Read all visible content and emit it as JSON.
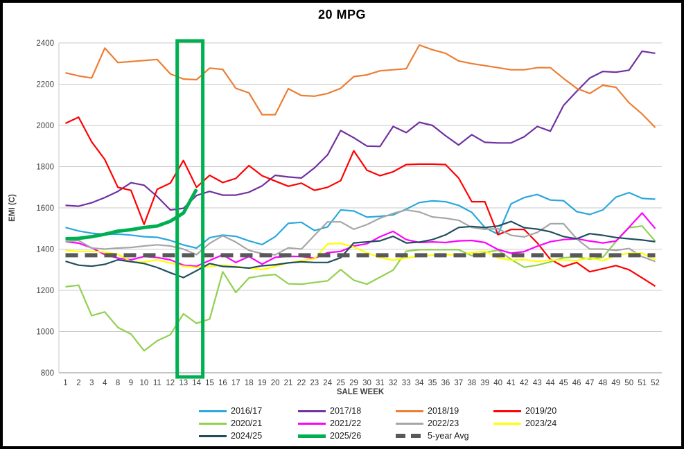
{
  "chart_data": {
    "type": "line",
    "title": "20 MPG",
    "xlabel": "SALE WEEK",
    "ylabel": "EMI (C)",
    "ylim": [
      800,
      2400
    ],
    "y_ticks": [
      800,
      1000,
      1200,
      1400,
      1600,
      1800,
      2000,
      2200,
      2400
    ],
    "grid": true,
    "legend_position": "bottom",
    "categories": [
      "1",
      "2",
      "3",
      "4",
      "8",
      "9",
      "10",
      "11",
      "12",
      "13",
      "14",
      "15",
      "16",
      "17",
      "18",
      "19",
      "20",
      "21",
      "22",
      "23",
      "24",
      "25",
      "29",
      "30",
      "31",
      "32",
      "33",
      "34",
      "35",
      "36",
      "37",
      "38",
      "39",
      "40",
      "41",
      "42",
      "43",
      "44",
      "45",
      "46",
      "47",
      "48",
      "49",
      "50",
      "51",
      "52"
    ],
    "highlight": {
      "from_category": "13",
      "to_category": "14",
      "color": "#00B050"
    },
    "series": [
      {
        "name": "2016/17",
        "color": "#29A8DC",
        "width": 2.2,
        "values": [
          1505,
          1488,
          1477,
          1472,
          1473,
          1468,
          1460,
          1457,
          1442,
          1420,
          1405,
          1455,
          1468,
          1462,
          1440,
          1422,
          1460,
          1525,
          1530,
          1490,
          1508,
          1590,
          1585,
          1555,
          1559,
          1566,
          1594,
          1626,
          1634,
          1630,
          1612,
          1578,
          1505,
          1472,
          1620,
          1650,
          1665,
          1638,
          1635,
          1582,
          1568,
          1590,
          1652,
          1674,
          1646,
          1642
        ]
      },
      {
        "name": "2017/18",
        "color": "#7030A0",
        "width": 2.2,
        "values": [
          1612,
          1608,
          1625,
          1650,
          1680,
          1722,
          1710,
          1655,
          1590,
          1598,
          1660,
          1680,
          1662,
          1662,
          1676,
          1707,
          1758,
          1750,
          1745,
          1794,
          1857,
          1975,
          1940,
          1900,
          1898,
          1995,
          1965,
          2015,
          2000,
          1950,
          1905,
          1955,
          1918,
          1915,
          1915,
          1945,
          1995,
          1972,
          2097,
          2165,
          2230,
          2262,
          2258,
          2268,
          2360,
          2350
        ]
      },
      {
        "name": "2018/19",
        "color": "#ED7D31",
        "width": 2.2,
        "values": [
          2255,
          2240,
          2230,
          2375,
          2305,
          2310,
          2315,
          2320,
          2250,
          2225,
          2222,
          2278,
          2272,
          2180,
          2158,
          2052,
          2052,
          2178,
          2145,
          2142,
          2155,
          2180,
          2237,
          2245,
          2265,
          2270,
          2275,
          2390,
          2367,
          2350,
          2313,
          2300,
          2290,
          2280,
          2270,
          2270,
          2280,
          2280,
          2228,
          2180,
          2155,
          2195,
          2185,
          2110,
          2055,
          1990
        ]
      },
      {
        "name": "2019/20",
        "color": "#FF0000",
        "width": 2.2,
        "values": [
          2010,
          2040,
          1920,
          1835,
          1700,
          1685,
          1520,
          1690,
          1720,
          1830,
          1700,
          1758,
          1723,
          1743,
          1805,
          1756,
          1730,
          1705,
          1720,
          1685,
          1700,
          1732,
          1877,
          1783,
          1756,
          1775,
          1810,
          1812,
          1812,
          1810,
          1745,
          1630,
          1630,
          1470,
          1495,
          1495,
          1430,
          1350,
          1315,
          1335,
          1290,
          1305,
          1320,
          1300,
          1260,
          1220
        ]
      },
      {
        "name": "2020/21",
        "color": "#92D050",
        "width": 2.2,
        "values": [
          1217,
          1225,
          1077,
          1095,
          1020,
          988,
          907,
          955,
          985,
          1086,
          1040,
          1060,
          1290,
          1190,
          1260,
          1271,
          1277,
          1232,
          1230,
          1238,
          1246,
          1301,
          1249,
          1230,
          1264,
          1298,
          1390,
          1397,
          1397,
          1397,
          1397,
          1368,
          1383,
          1395,
          1350,
          1312,
          1322,
          1338,
          1358,
          1362,
          1352,
          1360,
          1437,
          1504,
          1512,
          1438
        ]
      },
      {
        "name": "2021/22",
        "color": "#FF00FF",
        "width": 2.2,
        "values": [
          1436,
          1429,
          1406,
          1373,
          1356,
          1348,
          1364,
          1359,
          1348,
          1322,
          1317,
          1345,
          1372,
          1335,
          1364,
          1327,
          1360,
          1365,
          1364,
          1355,
          1383,
          1389,
          1415,
          1426,
          1460,
          1486,
          1446,
          1432,
          1435,
          1432,
          1440,
          1442,
          1432,
          1398,
          1380,
          1388,
          1414,
          1436,
          1446,
          1450,
          1439,
          1430,
          1439,
          1506,
          1575,
          1500
        ]
      },
      {
        "name": "2022/23",
        "color": "#A6A6A6",
        "width": 2.2,
        "values": [
          1436,
          1442,
          1405,
          1400,
          1405,
          1408,
          1415,
          1421,
          1415,
          1400,
          1373,
          1428,
          1465,
          1434,
          1394,
          1378,
          1372,
          1406,
          1400,
          1467,
          1532,
          1532,
          1496,
          1519,
          1550,
          1573,
          1590,
          1580,
          1556,
          1550,
          1540,
          1505,
          1496,
          1499,
          1467,
          1459,
          1481,
          1523,
          1523,
          1450,
          1400,
          1400,
          1394,
          1403,
          1363,
          1340
        ]
      },
      {
        "name": "2023/24",
        "color": "#FFFF00",
        "width": 2.2,
        "values": [
          1393,
          1389,
          1389,
          1386,
          1375,
          1339,
          1337,
          1348,
          1333,
          1317,
          1311,
          1316,
          1322,
          1316,
          1308,
          1301,
          1316,
          1333,
          1344,
          1353,
          1425,
          1428,
          1410,
          1382,
          1359,
          1346,
          1357,
          1365,
          1370,
          1372,
          1372,
          1383,
          1390,
          1357,
          1346,
          1349,
          1340,
          1347,
          1347,
          1344,
          1358,
          1344,
          1369,
          1380,
          1380,
          1349
        ]
      },
      {
        "name": "2024/25",
        "color": "#1F4E5F",
        "width": 2.2,
        "values": [
          1341,
          1322,
          1317,
          1326,
          1348,
          1339,
          1330,
          1311,
          1285,
          1262,
          1295,
          1330,
          1316,
          1313,
          1308,
          1319,
          1324,
          1333,
          1338,
          1335,
          1335,
          1358,
          1430,
          1435,
          1440,
          1462,
          1430,
          1434,
          1446,
          1469,
          1505,
          1510,
          1505,
          1512,
          1534,
          1504,
          1497,
          1484,
          1461,
          1450,
          1475,
          1467,
          1456,
          1450,
          1444,
          1436
        ]
      },
      {
        "name": "2025/26",
        "color": "#00B050",
        "width": 5,
        "values": [
          1450,
          1452,
          1460,
          1472,
          1487,
          1494,
          1505,
          1512,
          1535,
          1575,
          1690,
          null,
          null,
          null,
          null,
          null,
          null,
          null,
          null,
          null,
          null,
          null,
          null,
          null,
          null,
          null,
          null,
          null,
          null,
          null,
          null,
          null,
          null,
          null,
          null,
          null,
          null,
          null,
          null,
          null,
          null,
          null,
          null,
          null,
          null,
          null
        ]
      },
      {
        "name": "5-year Avg",
        "color": "#595959",
        "width": 6,
        "dash": "18 10",
        "constant": 1370
      }
    ]
  }
}
